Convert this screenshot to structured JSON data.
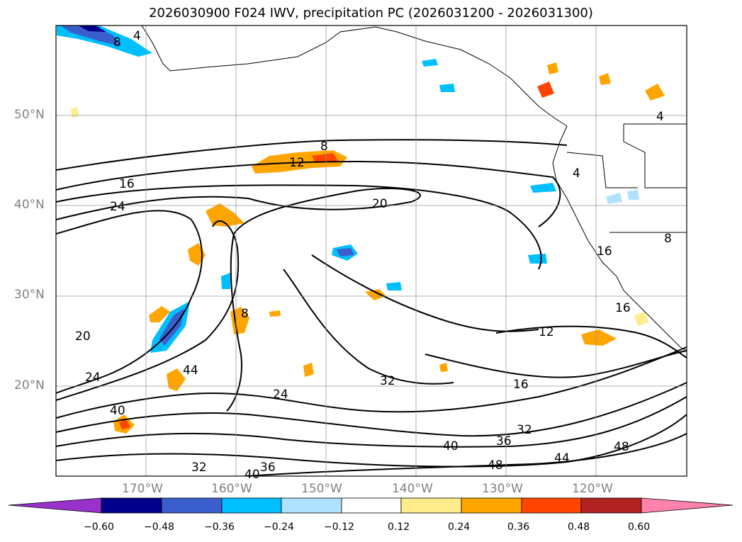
{
  "title": "2026030900 F024 IWV, precipitation PC (2026031200 - 2026031300)",
  "map": {
    "projection": "PlateCarree",
    "lon_range": [
      -180,
      -110
    ],
    "lat_range": [
      10,
      60
    ],
    "lon_ticks": [
      "170°W",
      "160°W",
      "150°W",
      "140°W",
      "130°W",
      "120°W"
    ],
    "lat_ticks": [
      "50°N",
      "40°N",
      "30°N",
      "20°N"
    ],
    "gridlines": true,
    "iwv_contour_labels": [
      "8",
      "4",
      "8",
      "12",
      "16",
      "24",
      "20",
      "8",
      "20",
      "24",
      "40",
      "44",
      "24",
      "32",
      "32",
      "40",
      "36",
      "36",
      "40",
      "48",
      "44",
      "48",
      "16",
      "12",
      "16",
      "4",
      "8",
      "16",
      "32",
      "4"
    ]
  },
  "colorbar": {
    "orientation": "horizontal",
    "extend": "both",
    "tick_labels": [
      "−0.60",
      "−0.48",
      "−0.36",
      "−0.24",
      "−0.12",
      "0.12",
      "0.24",
      "0.36",
      "0.48",
      "0.60"
    ],
    "colors": [
      "#9932cc",
      "#00008b",
      "#3a5fcd",
      "#00bfff",
      "#b0e2ff",
      "#ffffff",
      "#ffec8b",
      "#ffa500",
      "#ff4500",
      "#b22222",
      "#ff82ab"
    ]
  }
}
